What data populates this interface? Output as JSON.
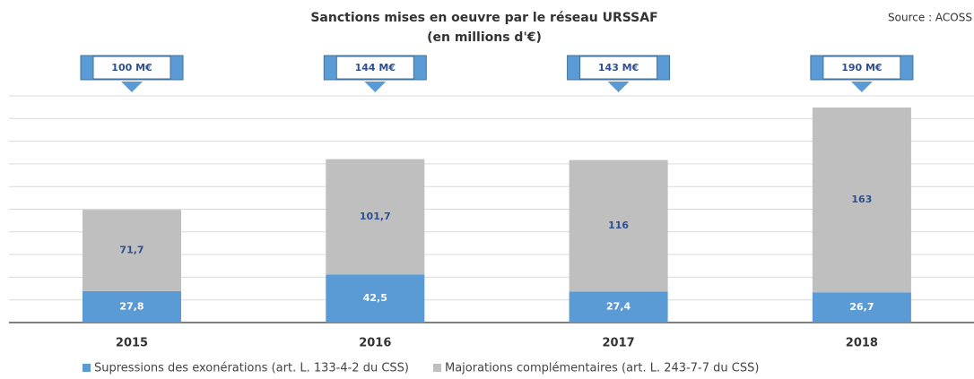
{
  "chart_data": {
    "type": "stacked_bar",
    "title": "Sanctions mises en oeuvre par le réseau URSSAF",
    "subtitle": "(en millions d'€)",
    "source": "Source : ACOSS",
    "categories": [
      "2015",
      "2016",
      "2017",
      "2018"
    ],
    "series": [
      {
        "name": "Supressions des exonérations (art. L. 133-4-2 du CSS)",
        "color": "#5b9bd5",
        "values": [
          27.8,
          42.5,
          27.4,
          26.7
        ],
        "value_labels": [
          "27,8",
          "42,5",
          "27,4",
          "26,7"
        ]
      },
      {
        "name": "Majorations complémentaires (art. L. 243-7-7 du CSS)",
        "color": "#bfbfbf",
        "values": [
          71.7,
          101.7,
          116,
          163
        ],
        "value_labels": [
          "71,7",
          "101,7",
          "116",
          "163"
        ]
      }
    ],
    "annotations": [
      "100 M€",
      "144 M€",
      "143 M€",
      "190 M€"
    ],
    "ylim": [
      0,
      200
    ],
    "yticks": [
      0,
      20,
      40,
      60,
      80,
      100,
      120,
      140,
      160,
      180,
      200
    ],
    "grid": true,
    "legend": "bottom"
  }
}
